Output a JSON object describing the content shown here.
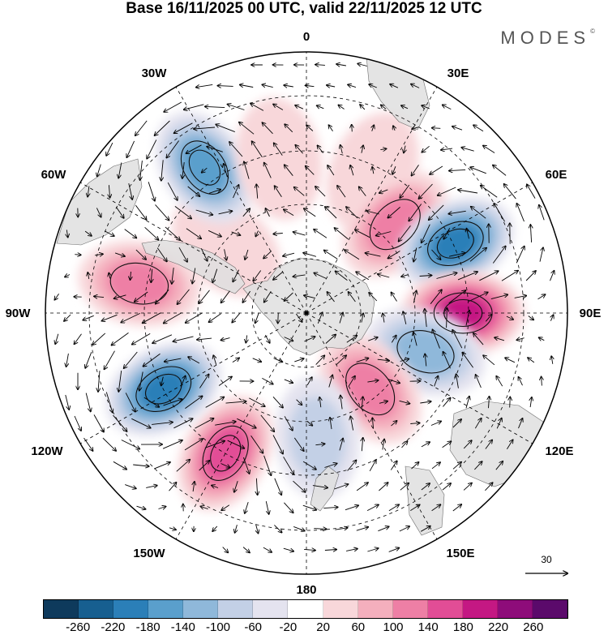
{
  "title": "Base 16/11/2025 00 UTC, valid 22/11/2025 12 UTC",
  "brand": "MODES",
  "brand_mark": "©",
  "labels": {
    "lon0": "0",
    "lon30e": "30E",
    "lon60e": "60E",
    "lon90e": "90E",
    "lon120e": "120E",
    "lon150e": "150E",
    "lon180": "180",
    "lon150w": "150W",
    "lon120w": "120W",
    "lon90w": "90W",
    "lon60w": "60W",
    "lon30w": "30W"
  },
  "vector_scale": "30",
  "colorbar": {
    "colors": [
      "#0e3a5c",
      "#175f90",
      "#2b7fb8",
      "#5a9fcc",
      "#8fb8da",
      "#c3d0e6",
      "#e4e3ef",
      "#ffffff",
      "#f8d7da",
      "#f4afbd",
      "#ee7fa5",
      "#e24d96",
      "#c41883",
      "#8e0c7a",
      "#5b0a6b"
    ],
    "ticks": [
      "-260",
      "-220",
      "-180",
      "-140",
      "-100",
      "-60",
      "-20",
      "20",
      "60",
      "100",
      "140",
      "180",
      "220",
      "260"
    ]
  },
  "anomalies": [
    {
      "lon": 25,
      "r": 0.6,
      "v": 50
    },
    {
      "lon": 45,
      "r": 0.48,
      "v": 110
    },
    {
      "lon": 65,
      "r": 0.63,
      "v": -210
    },
    {
      "lon": 90,
      "r": 0.6,
      "v": 190
    },
    {
      "lon": 108,
      "r": 0.48,
      "v": -120
    },
    {
      "lon": 140,
      "r": 0.38,
      "v": 100
    },
    {
      "lon": 175,
      "r": 0.48,
      "v": -90
    },
    {
      "lon": 210,
      "r": 0.62,
      "v": 150
    },
    {
      "lon": 242,
      "r": 0.62,
      "v": -190
    },
    {
      "lon": 280,
      "r": 0.65,
      "v": 110
    },
    {
      "lon": 310,
      "r": 0.4,
      "v": 40
    },
    {
      "lon": 325,
      "r": 0.68,
      "v": -170
    },
    {
      "lon": 350,
      "r": 0.6,
      "v": 40
    }
  ]
}
